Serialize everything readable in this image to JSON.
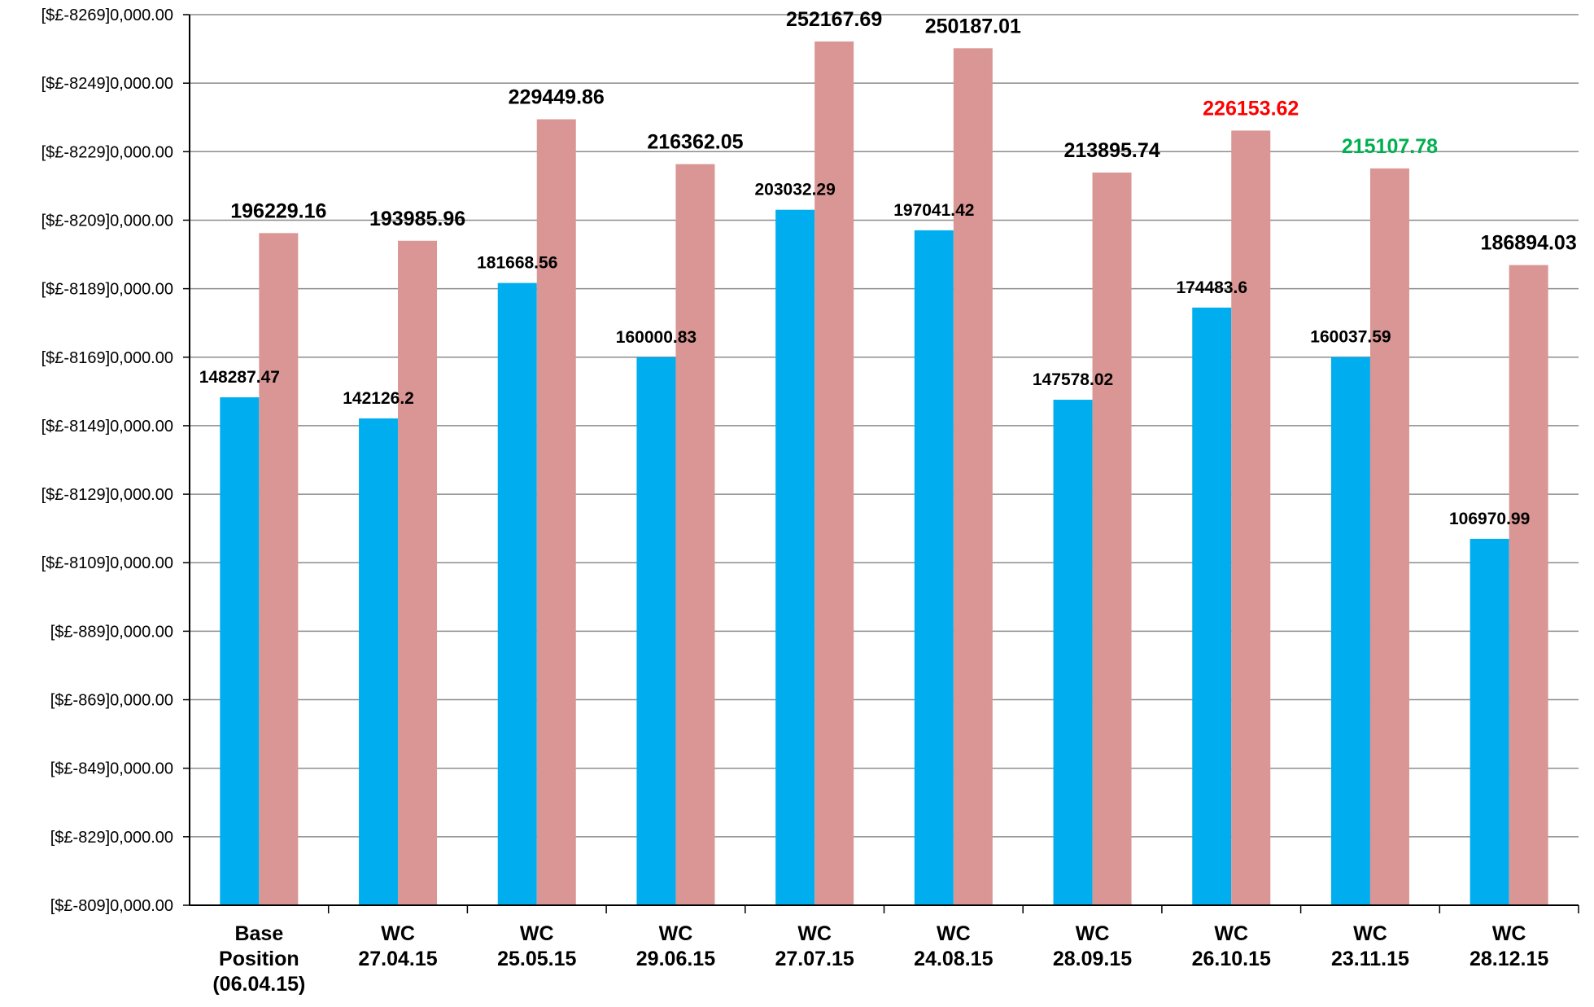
{
  "chart_data": {
    "type": "bar",
    "title": "",
    "xlabel": "",
    "ylabel": "",
    "ylim": [
      0,
      260000
    ],
    "y_ticks": [
      0,
      20000,
      40000,
      60000,
      80000,
      100000,
      120000,
      140000,
      160000,
      180000,
      200000,
      220000,
      240000,
      260000
    ],
    "y_tick_labels": [
      "[$£-809]0,000.00",
      "[$£-829]0,000.00",
      "[$£-849]0,000.00",
      "[$£-869]0,000.00",
      "[$£-889]0,000.00",
      "[$£-8109]0,000.00",
      "[$£-8129]0,000.00",
      "[$£-8149]0,000.00",
      "[$£-8169]0,000.00",
      "[$£-8189]0,000.00",
      "[$£-8209]0,000.00",
      "[$£-8229]0,000.00",
      "[$£-8249]0,000.00",
      "[$£-8269]0,000.00"
    ],
    "grid": true,
    "legend": "none",
    "categories": [
      [
        "Base",
        "Position",
        "(06.04.15)"
      ],
      [
        "WC",
        "27.04.15"
      ],
      [
        "WC",
        "25.05.15"
      ],
      [
        "WC",
        "29.06.15"
      ],
      [
        "WC",
        "27.07.15"
      ],
      [
        "WC",
        "24.08.15"
      ],
      [
        "WC",
        "28.09.15"
      ],
      [
        "WC",
        "26.10.15"
      ],
      [
        "WC",
        "23.11.15"
      ],
      [
        "WC",
        "28.12.15"
      ]
    ],
    "series": [
      {
        "color": "#00AEEF",
        "values": [
          148287.47,
          142126.2,
          181668.56,
          160000.83,
          203032.29,
          197041.42,
          147578.02,
          174483.6,
          160037.59,
          106970.99
        ],
        "labels": [
          "148287.47",
          "142126.2",
          "181668.56",
          "160000.83",
          "203032.29",
          "197041.42",
          "147578.02",
          "174483.6",
          "160037.59",
          "106970.99"
        ]
      },
      {
        "color": "#D99694",
        "values": [
          196229.16,
          193985.96,
          229449.86,
          216362.05,
          252167.69,
          250187.01,
          213895.74,
          226153.62,
          215107.78,
          186894.03
        ],
        "labels": [
          "196229.16",
          "193985.96",
          "229449.86",
          "216362.05",
          "252167.69",
          "250187.01",
          "213895.74",
          "226153.62",
          "215107.78",
          "186894.03"
        ],
        "label_colors": [
          "#000000",
          "#000000",
          "#000000",
          "#000000",
          "#000000",
          "#000000",
          "#000000",
          "#FF0000",
          "#00B050",
          "#000000"
        ]
      }
    ]
  }
}
